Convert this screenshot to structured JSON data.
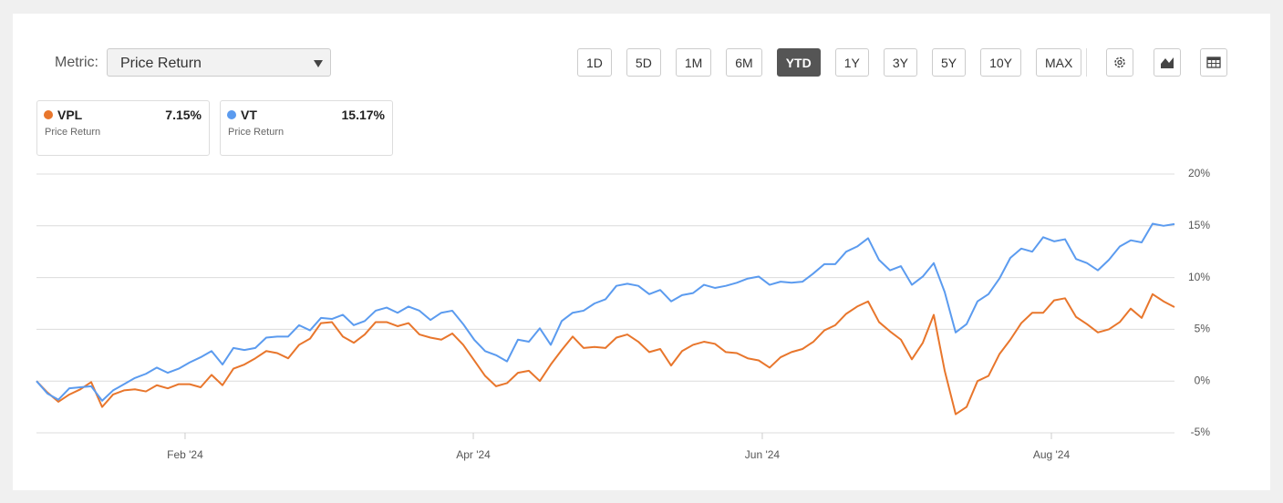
{
  "toolbar": {
    "metric_label": "Metric:",
    "metric_value": "Price Return",
    "ranges": [
      "1D",
      "5D",
      "1M",
      "6M",
      "YTD",
      "1Y",
      "3Y",
      "5Y",
      "10Y",
      "MAX"
    ],
    "active_range": 4
  },
  "chart_data": {
    "type": "line",
    "series": [
      {
        "name": "VPL",
        "color": "#e8762c",
        "legend_value_label": "7.15%",
        "values": [
          0,
          -1.1,
          -2.0,
          -1.3,
          -0.8,
          -0.1,
          -2.5,
          -1.3,
          -0.9,
          -0.8,
          -1.0,
          -0.4,
          -0.7,
          -0.3,
          -0.3,
          -0.6,
          0.6,
          -0.4,
          1.2,
          1.6,
          2.2,
          2.9,
          2.7,
          2.2,
          3.5,
          4.1,
          5.6,
          5.7,
          4.3,
          3.7,
          4.5,
          5.7,
          5.7,
          5.3,
          5.6,
          4.5,
          4.2,
          4.0,
          4.6,
          3.5,
          2.0,
          0.5,
          -0.5,
          -0.2,
          0.8,
          1.0,
          0.0,
          1.6,
          3.0,
          4.3,
          3.2,
          3.3,
          3.2,
          4.2,
          4.5,
          3.8,
          2.8,
          3.1,
          1.5,
          2.9,
          3.5,
          3.8,
          3.6,
          2.8,
          2.7,
          2.2,
          2.0,
          1.3,
          2.3,
          2.8,
          3.1,
          3.8,
          4.9,
          5.4,
          6.5,
          7.2,
          7.7,
          5.7,
          4.8,
          4.0,
          2.1,
          3.7,
          6.4,
          1.0,
          -3.2,
          -2.5,
          0.0,
          0.5,
          2.6,
          4.0,
          5.6,
          6.6,
          6.6,
          7.8,
          8.0,
          6.2,
          5.5,
          4.7,
          5.0,
          5.7,
          7.0,
          6.1,
          8.4,
          7.7,
          7.15
        ]
      },
      {
        "name": "VT",
        "color": "#5b9bef",
        "legend_value_label": "15.17%",
        "values": [
          0,
          -1.2,
          -1.8,
          -0.7,
          -0.6,
          -0.5,
          -1.9,
          -0.9,
          -0.3,
          0.3,
          0.7,
          1.3,
          0.8,
          1.2,
          1.8,
          2.3,
          2.9,
          1.6,
          3.2,
          3.0,
          3.2,
          4.2,
          4.3,
          4.3,
          5.4,
          4.9,
          6.1,
          6.0,
          6.4,
          5.4,
          5.8,
          6.8,
          7.1,
          6.6,
          7.2,
          6.8,
          5.9,
          6.6,
          6.8,
          5.5,
          4.0,
          2.9,
          2.5,
          1.9,
          4.0,
          3.8,
          5.1,
          3.5,
          5.8,
          6.6,
          6.8,
          7.5,
          7.9,
          9.2,
          9.4,
          9.2,
          8.4,
          8.8,
          7.7,
          8.3,
          8.5,
          9.3,
          9.0,
          9.2,
          9.5,
          9.9,
          10.1,
          9.3,
          9.6,
          9.5,
          9.6,
          10.4,
          11.3,
          11.3,
          12.5,
          13.0,
          13.8,
          11.7,
          10.7,
          11.1,
          9.3,
          10.1,
          11.4,
          8.6,
          4.7,
          5.5,
          7.7,
          8.4,
          9.9,
          11.9,
          12.8,
          12.5,
          13.9,
          13.5,
          13.7,
          11.8,
          11.4,
          10.7,
          11.7,
          13.0,
          13.6,
          13.4,
          15.2,
          15.0,
          15.17
        ]
      }
    ],
    "xlim": [
      0,
      104
    ],
    "xticks": [
      {
        "value": 13.58,
        "label": "Feb '24"
      },
      {
        "value": 39.92,
        "label": "Apr '24"
      },
      {
        "value": 66.33,
        "label": "Jun '24"
      },
      {
        "value": 92.75,
        "label": "Aug '24"
      }
    ],
    "ylim": [
      -5,
      20
    ],
    "yticks": [
      {
        "value": -5,
        "label": "-5%"
      },
      {
        "value": 0,
        "label": "0%"
      },
      {
        "value": 5,
        "label": "5%"
      },
      {
        "value": 10,
        "label": "10%"
      },
      {
        "value": 15,
        "label": "15%"
      },
      {
        "value": 20,
        "label": "20%"
      }
    ],
    "grid": true
  }
}
